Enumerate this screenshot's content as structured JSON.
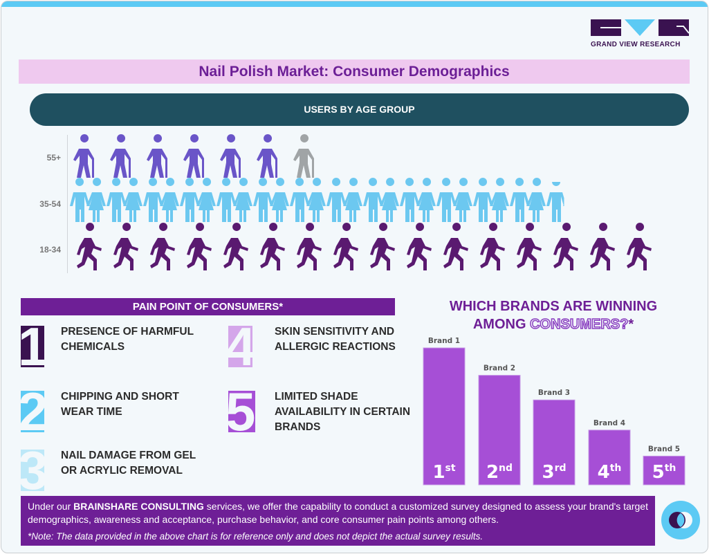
{
  "logo": {
    "text": "GRAND VIEW RESEARCH"
  },
  "title": "Nail Polish Market: Consumer Demographics",
  "age_section": {
    "title": "USERS BY AGE GROUP"
  },
  "pain_points": {
    "title": "PAIN POINT OF CONSUMERS*",
    "items": [
      {
        "number": "1",
        "text": "PRESENCE OF HARMFUL CHEMICALS",
        "color": "#3a1250"
      },
      {
        "number": "2",
        "text": "CHIPPING AND SHORT WEAR TIME",
        "color": "#5ccaf4"
      },
      {
        "number": "3",
        "text": "NAIL DAMAGE FROM GEL OR ACRYLIC REMOVAL",
        "color": "#bde8f8"
      },
      {
        "number": "4",
        "text": "SKIN SENSITIVITY AND ALLERGIC REACTIONS",
        "color": "#d4a6ea"
      },
      {
        "number": "5",
        "text": "LIMITED SHADE AVAILABILITY IN CERTAIN BRANDS",
        "color": "#a64fd6"
      }
    ]
  },
  "brands": {
    "title_line1": "WHICH BRANDS ARE WINNING",
    "title_line2a": "AMONG",
    "title_line2b": "CONSUMERS?",
    "title_star": "*"
  },
  "footer": {
    "text_pre": "Under our ",
    "highlight": "BRAINSHARE CONSULTING",
    "text_post": " services, we offer the capability to conduct a customized survey designed to assess your brand's target demographics, awareness and acceptance, purchase behavior, and core consumer pain points among others.",
    "note": "*Note: The data provided in the above chart is for reference only and does not depict the actual survey results."
  },
  "chart_data": [
    {
      "type": "pictograph",
      "title": "USERS BY AGE GROUP",
      "categories": [
        "55+",
        "35-54",
        "18-34"
      ],
      "values": [
        6.6,
        13.5,
        16
      ],
      "colors": [
        "#6a55c8",
        "#6cc8f0",
        "#5a1a70"
      ],
      "remainder_color": "#a0a4a6"
    },
    {
      "type": "bar",
      "title": "WHICH BRANDS ARE WINNING AMONG CONSUMERS?*",
      "categories": [
        "Brand 1",
        "Brand 2",
        "Brand 3",
        "Brand 4",
        "Brand 5"
      ],
      "values": [
        100,
        80,
        62,
        40,
        21
      ],
      "rank_labels": [
        {
          "n": "1",
          "s": "st"
        },
        {
          "n": "2",
          "s": "nd"
        },
        {
          "n": "3",
          "s": "rd"
        },
        {
          "n": "4",
          "s": "th"
        },
        {
          "n": "5",
          "s": "th"
        }
      ],
      "color": "#a64fd6"
    }
  ]
}
